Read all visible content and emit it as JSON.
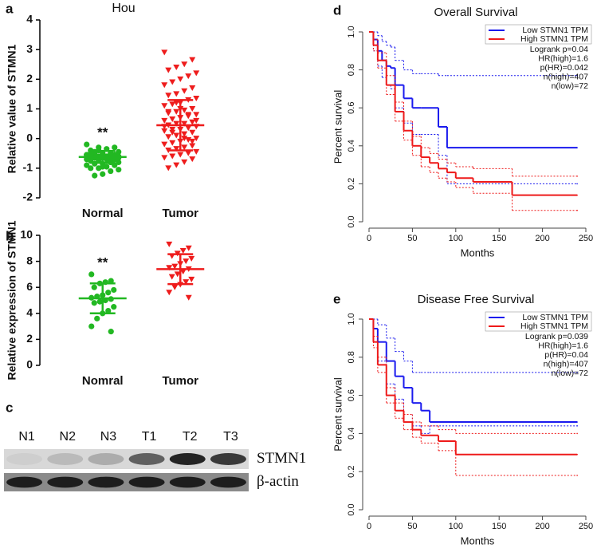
{
  "chart_data": [
    {
      "type": "dot",
      "panel_label": "a",
      "title": "Hou",
      "y_label": "Relative value of STMN1",
      "categories": [
        "Normal",
        "Tumor"
      ],
      "annotation": "**",
      "ylim": [
        -2,
        4
      ],
      "yticks": [
        -2,
        -1,
        0,
        1,
        2,
        3,
        4
      ],
      "groups": [
        {
          "color": "#22b822",
          "marker": "circle",
          "mean": -0.62,
          "sd": 0.2,
          "values": [
            -0.2,
            -0.3,
            -0.35,
            -0.4,
            -0.4,
            -0.45,
            -0.5,
            -0.5,
            -0.5,
            -0.55,
            -0.55,
            -0.6,
            -0.6,
            -0.6,
            -0.6,
            -0.65,
            -0.65,
            -0.65,
            -0.7,
            -0.7,
            -0.7,
            -0.75,
            -0.75,
            -0.8,
            -0.8,
            -0.85,
            -0.85,
            -0.9,
            -0.9,
            -0.95,
            -1.0,
            -1.0,
            -1.05,
            -1.1,
            -1.2,
            -0.45,
            -0.55,
            -0.6,
            -0.7,
            -0.3,
            -0.5,
            -0.65,
            -0.8,
            -0.95,
            -1.25
          ]
        },
        {
          "color": "#ee1c1c",
          "marker": "triangle-down",
          "mean": 0.45,
          "sd": 0.85,
          "values": [
            2.9,
            2.65,
            2.5,
            2.4,
            2.3,
            2.2,
            2.1,
            2.0,
            1.9,
            1.8,
            1.7,
            1.6,
            1.5,
            1.45,
            1.35,
            1.3,
            1.2,
            1.15,
            1.1,
            1.0,
            0.95,
            0.9,
            0.85,
            0.8,
            0.75,
            0.7,
            0.65,
            0.6,
            0.55,
            0.5,
            0.5,
            0.45,
            0.4,
            0.35,
            0.3,
            0.3,
            0.25,
            0.2,
            0.15,
            0.1,
            0.05,
            0.0,
            -0.05,
            -0.1,
            -0.15,
            -0.2,
            -0.25,
            -0.3,
            -0.35,
            -0.4,
            -0.45,
            -0.5,
            -0.55,
            -0.6,
            -0.65,
            -0.7,
            -0.8,
            -0.9,
            -1.0,
            0.6,
            0.8,
            1.0,
            0.2,
            0.4,
            -0.1,
            0.0,
            1.2,
            0.9
          ]
        }
      ]
    },
    {
      "type": "dot",
      "panel_label": "b",
      "y_label": "Relative expression of STMN1",
      "categories": [
        "Nomral",
        "Tumor"
      ],
      "annotation": "**",
      "ylim": [
        0,
        10
      ],
      "yticks": [
        0,
        2,
        4,
        6,
        8,
        10
      ],
      "groups": [
        {
          "color": "#22b822",
          "marker": "circle",
          "mean": 5.15,
          "sd": 1.15,
          "values": [
            7.0,
            6.5,
            6.4,
            6.3,
            6.0,
            5.8,
            5.6,
            5.4,
            5.3,
            5.2,
            5.1,
            5.0,
            4.9,
            4.8,
            4.5,
            4.2,
            4.0,
            3.6,
            3.0,
            2.6
          ]
        },
        {
          "color": "#ee1c1c",
          "marker": "triangle-down",
          "mean": 7.4,
          "sd": 1.15,
          "values": [
            9.3,
            9.0,
            8.8,
            8.6,
            8.4,
            8.2,
            8.0,
            7.8,
            7.6,
            7.5,
            7.4,
            7.2,
            7.0,
            6.8,
            6.6,
            6.4,
            6.2,
            6.0,
            5.6,
            5.2
          ]
        }
      ]
    },
    {
      "type": "blot",
      "panel_label": "c",
      "lanes": [
        "N1",
        "N2",
        "N3",
        "T1",
        "T2",
        "T3"
      ],
      "rows": [
        "STMN1",
        "β-actin"
      ]
    },
    {
      "type": "km",
      "panel_label": "d",
      "title": "Overall Survival",
      "x_label": "Months",
      "y_label": "Percent survival",
      "xlim": [
        0,
        250
      ],
      "xticks": [
        0,
        50,
        100,
        150,
        200,
        250
      ],
      "ylim": [
        0,
        1
      ],
      "yticks": [
        {
          "value": 0,
          "label": "0.0"
        },
        0.2,
        0.4,
        0.6,
        0.8,
        {
          "value": 1,
          "label": "1.0"
        }
      ],
      "annotations": [
        "Logrank p=0.04",
        "HR(high)=1.6",
        "p(HR)=0.042",
        "n(high)=407",
        "n(low)=72"
      ],
      "series": [
        {
          "name": "Low STMN1 TPM",
          "color": "#1a1aee",
          "x": [
            0,
            5,
            10,
            15,
            20,
            25,
            30,
            40,
            50,
            60,
            80,
            90,
            240
          ],
          "values": [
            1.0,
            0.96,
            0.9,
            0.85,
            0.82,
            0.81,
            0.72,
            0.65,
            0.6,
            0.6,
            0.5,
            0.39,
            0.39
          ],
          "upper": [
            1.0,
            1.0,
            0.98,
            0.95,
            0.93,
            0.92,
            0.85,
            0.8,
            0.78,
            0.78,
            0.77,
            0.77,
            0.77
          ],
          "lower": [
            1.0,
            0.9,
            0.82,
            0.76,
            0.72,
            0.7,
            0.6,
            0.52,
            0.46,
            0.46,
            0.35,
            0.2,
            0.2
          ]
        },
        {
          "name": "High STMN1 TPM",
          "color": "#ee1a1a",
          "x": [
            0,
            5,
            10,
            20,
            30,
            40,
            50,
            60,
            70,
            80,
            90,
            100,
            120,
            165,
            240
          ],
          "values": [
            1.0,
            0.93,
            0.85,
            0.72,
            0.58,
            0.48,
            0.4,
            0.34,
            0.31,
            0.28,
            0.26,
            0.23,
            0.21,
            0.14,
            0.14
          ],
          "upper": [
            1.0,
            0.96,
            0.89,
            0.77,
            0.63,
            0.53,
            0.45,
            0.39,
            0.36,
            0.33,
            0.31,
            0.29,
            0.28,
            0.24,
            0.24
          ],
          "lower": [
            1.0,
            0.9,
            0.81,
            0.67,
            0.53,
            0.43,
            0.35,
            0.29,
            0.26,
            0.23,
            0.21,
            0.18,
            0.15,
            0.06,
            0.06
          ]
        }
      ]
    },
    {
      "type": "km",
      "panel_label": "e",
      "title": "Disease Free Survival",
      "x_label": "Months",
      "y_label": "Percent survival",
      "xlim": [
        0,
        250
      ],
      "xticks": [
        0,
        50,
        100,
        150,
        200,
        250
      ],
      "ylim": [
        0,
        1
      ],
      "yticks": [
        {
          "value": 0,
          "label": "0.0"
        },
        0.2,
        0.4,
        0.6,
        0.8,
        {
          "value": 1,
          "label": "1.0"
        }
      ],
      "annotations": [
        "Logrank p=0.039",
        "HR(high)=1.6",
        "p(HR)=0.04",
        "n(high)=407",
        "n(low)=72"
      ],
      "series": [
        {
          "name": "Low STMN1 TPM",
          "color": "#1a1aee",
          "x": [
            0,
            5,
            10,
            20,
            30,
            40,
            50,
            60,
            70,
            240
          ],
          "values": [
            1.0,
            0.95,
            0.88,
            0.78,
            0.7,
            0.64,
            0.56,
            0.52,
            0.46,
            0.46
          ],
          "upper": [
            1.0,
            1.0,
            0.97,
            0.9,
            0.83,
            0.78,
            0.72,
            0.72,
            0.72,
            0.72
          ],
          "lower": [
            1.0,
            0.88,
            0.78,
            0.66,
            0.58,
            0.5,
            0.44,
            0.4,
            0.44,
            0.44
          ]
        },
        {
          "name": "High STMN1 TPM",
          "color": "#ee1a1a",
          "x": [
            0,
            5,
            10,
            20,
            30,
            40,
            50,
            60,
            80,
            100,
            240
          ],
          "values": [
            1.0,
            0.88,
            0.76,
            0.6,
            0.52,
            0.46,
            0.42,
            0.39,
            0.36,
            0.29,
            0.29
          ],
          "upper": [
            1.0,
            0.91,
            0.8,
            0.64,
            0.56,
            0.5,
            0.46,
            0.44,
            0.42,
            0.4,
            0.4
          ],
          "lower": [
            1.0,
            0.85,
            0.72,
            0.56,
            0.48,
            0.42,
            0.38,
            0.35,
            0.31,
            0.18,
            0.18
          ]
        }
      ]
    }
  ]
}
